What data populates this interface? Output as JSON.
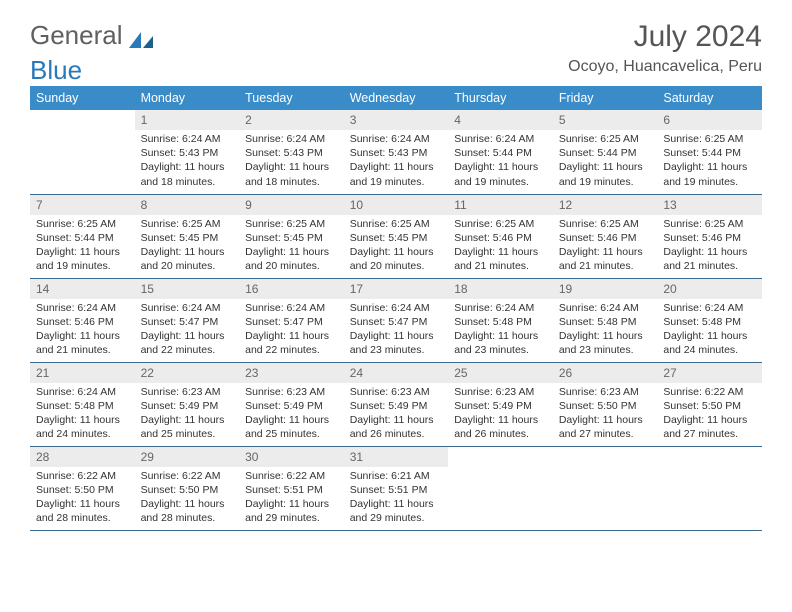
{
  "logo": {
    "text1": "General",
    "text2": "Blue"
  },
  "title": "July 2024",
  "location": "Ocoyo, Huancavelica, Peru",
  "colors": {
    "header_bg": "#3a8cc9",
    "header_text": "#ffffff",
    "daynum_bg": "#ececec",
    "daynum_text": "#666666",
    "body_text": "#333333",
    "row_border": "#3a6a90",
    "logo_gray": "#606060",
    "logo_blue": "#2a7ab8"
  },
  "weekdays": [
    "Sunday",
    "Monday",
    "Tuesday",
    "Wednesday",
    "Thursday",
    "Friday",
    "Saturday"
  ],
  "grid": [
    [
      null,
      {
        "n": "1",
        "sr": "6:24 AM",
        "ss": "5:43 PM",
        "dl": "11 hours and 18 minutes."
      },
      {
        "n": "2",
        "sr": "6:24 AM",
        "ss": "5:43 PM",
        "dl": "11 hours and 18 minutes."
      },
      {
        "n": "3",
        "sr": "6:24 AM",
        "ss": "5:43 PM",
        "dl": "11 hours and 19 minutes."
      },
      {
        "n": "4",
        "sr": "6:24 AM",
        "ss": "5:44 PM",
        "dl": "11 hours and 19 minutes."
      },
      {
        "n": "5",
        "sr": "6:25 AM",
        "ss": "5:44 PM",
        "dl": "11 hours and 19 minutes."
      },
      {
        "n": "6",
        "sr": "6:25 AM",
        "ss": "5:44 PM",
        "dl": "11 hours and 19 minutes."
      }
    ],
    [
      {
        "n": "7",
        "sr": "6:25 AM",
        "ss": "5:44 PM",
        "dl": "11 hours and 19 minutes."
      },
      {
        "n": "8",
        "sr": "6:25 AM",
        "ss": "5:45 PM",
        "dl": "11 hours and 20 minutes."
      },
      {
        "n": "9",
        "sr": "6:25 AM",
        "ss": "5:45 PM",
        "dl": "11 hours and 20 minutes."
      },
      {
        "n": "10",
        "sr": "6:25 AM",
        "ss": "5:45 PM",
        "dl": "11 hours and 20 minutes."
      },
      {
        "n": "11",
        "sr": "6:25 AM",
        "ss": "5:46 PM",
        "dl": "11 hours and 21 minutes."
      },
      {
        "n": "12",
        "sr": "6:25 AM",
        "ss": "5:46 PM",
        "dl": "11 hours and 21 minutes."
      },
      {
        "n": "13",
        "sr": "6:25 AM",
        "ss": "5:46 PM",
        "dl": "11 hours and 21 minutes."
      }
    ],
    [
      {
        "n": "14",
        "sr": "6:24 AM",
        "ss": "5:46 PM",
        "dl": "11 hours and 21 minutes."
      },
      {
        "n": "15",
        "sr": "6:24 AM",
        "ss": "5:47 PM",
        "dl": "11 hours and 22 minutes."
      },
      {
        "n": "16",
        "sr": "6:24 AM",
        "ss": "5:47 PM",
        "dl": "11 hours and 22 minutes."
      },
      {
        "n": "17",
        "sr": "6:24 AM",
        "ss": "5:47 PM",
        "dl": "11 hours and 23 minutes."
      },
      {
        "n": "18",
        "sr": "6:24 AM",
        "ss": "5:48 PM",
        "dl": "11 hours and 23 minutes."
      },
      {
        "n": "19",
        "sr": "6:24 AM",
        "ss": "5:48 PM",
        "dl": "11 hours and 23 minutes."
      },
      {
        "n": "20",
        "sr": "6:24 AM",
        "ss": "5:48 PM",
        "dl": "11 hours and 24 minutes."
      }
    ],
    [
      {
        "n": "21",
        "sr": "6:24 AM",
        "ss": "5:48 PM",
        "dl": "11 hours and 24 minutes."
      },
      {
        "n": "22",
        "sr": "6:23 AM",
        "ss": "5:49 PM",
        "dl": "11 hours and 25 minutes."
      },
      {
        "n": "23",
        "sr": "6:23 AM",
        "ss": "5:49 PM",
        "dl": "11 hours and 25 minutes."
      },
      {
        "n": "24",
        "sr": "6:23 AM",
        "ss": "5:49 PM",
        "dl": "11 hours and 26 minutes."
      },
      {
        "n": "25",
        "sr": "6:23 AM",
        "ss": "5:49 PM",
        "dl": "11 hours and 26 minutes."
      },
      {
        "n": "26",
        "sr": "6:23 AM",
        "ss": "5:50 PM",
        "dl": "11 hours and 27 minutes."
      },
      {
        "n": "27",
        "sr": "6:22 AM",
        "ss": "5:50 PM",
        "dl": "11 hours and 27 minutes."
      }
    ],
    [
      {
        "n": "28",
        "sr": "6:22 AM",
        "ss": "5:50 PM",
        "dl": "11 hours and 28 minutes."
      },
      {
        "n": "29",
        "sr": "6:22 AM",
        "ss": "5:50 PM",
        "dl": "11 hours and 28 minutes."
      },
      {
        "n": "30",
        "sr": "6:22 AM",
        "ss": "5:51 PM",
        "dl": "11 hours and 29 minutes."
      },
      {
        "n": "31",
        "sr": "6:21 AM",
        "ss": "5:51 PM",
        "dl": "11 hours and 29 minutes."
      },
      null,
      null,
      null
    ]
  ],
  "labels": {
    "sunrise": "Sunrise:",
    "sunset": "Sunset:",
    "daylight": "Daylight:"
  }
}
